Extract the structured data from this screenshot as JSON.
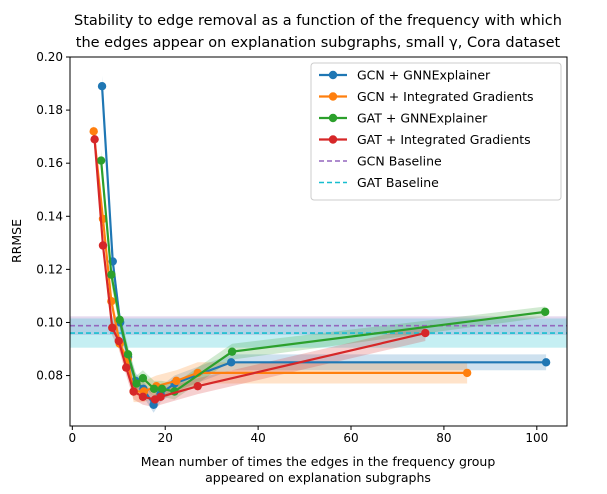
{
  "chart_data": {
    "type": "line",
    "title_lines": [
      "Stability to edge removal as a function of the frequency with which",
      "the edges appear on explanation subgraphs, small γ, Cora dataset"
    ],
    "xlabel_lines": [
      "Mean number of times the edges in the frequency group",
      "appeared on explanation subgraphs"
    ],
    "ylabel": "RRMSE",
    "xlim": [
      -0.5,
      106.5
    ],
    "ylim": [
      0.061,
      0.2
    ],
    "xticks": [
      0,
      20,
      40,
      60,
      80,
      100
    ],
    "yticks": [
      0.08,
      0.1,
      0.12,
      0.14,
      0.16,
      0.18,
      0.2
    ],
    "ytick_labels": [
      "0.08",
      "0.10",
      "0.12",
      "0.14",
      "0.16",
      "0.18",
      "0.20"
    ],
    "grid": false,
    "legend_position": "top-right",
    "series": [
      {
        "name": "GCN + GNNExplainer",
        "color": "#1f77b4",
        "x": [
          6.4,
          8.7,
          10.3,
          12.0,
          13.6,
          15.3,
          17.5,
          19.0,
          22.0,
          34.2,
          102.0
        ],
        "y": [
          0.189,
          0.123,
          0.1,
          0.087,
          0.078,
          0.075,
          0.069,
          0.073,
          0.077,
          0.085,
          0.085
        ],
        "band": [
          0.004,
          0.004,
          0.003,
          0.003,
          0.003,
          0.003,
          0.003,
          0.003,
          0.003,
          0.003,
          0.003
        ]
      },
      {
        "name": "GCN + Integrated Gradients",
        "color": "#ff7f0e",
        "x": [
          4.6,
          6.6,
          8.4,
          10.2,
          11.9,
          13.2,
          15.4,
          18.1,
          22.4,
          27.0,
          85.0
        ],
        "y": [
          0.172,
          0.139,
          0.108,
          0.092,
          0.086,
          0.074,
          0.074,
          0.076,
          0.078,
          0.081,
          0.081
        ],
        "band": [
          0.003,
          0.003,
          0.003,
          0.003,
          0.004,
          0.004,
          0.004,
          0.004,
          0.004,
          0.004,
          0.004
        ]
      },
      {
        "name": "GAT + GNNExplainer",
        "color": "#2ca02c",
        "x": [
          6.2,
          8.4,
          10.2,
          12.0,
          13.8,
          15.2,
          17.6,
          19.3,
          22.0,
          34.4,
          101.8
        ],
        "y": [
          0.161,
          0.118,
          0.101,
          0.088,
          0.077,
          0.079,
          0.075,
          0.075,
          0.074,
          0.089,
          0.104
        ],
        "band": [
          0.004,
          0.004,
          0.003,
          0.003,
          0.003,
          0.003,
          0.003,
          0.003,
          0.003,
          0.003,
          0.002
        ]
      },
      {
        "name": "GAT + Integrated Gradients",
        "color": "#d62728",
        "x": [
          4.8,
          6.6,
          8.6,
          10.0,
          11.6,
          13.2,
          15.2,
          17.8,
          19.0,
          27.0,
          76.0
        ],
        "y": [
          0.169,
          0.129,
          0.098,
          0.093,
          0.083,
          0.074,
          0.072,
          0.071,
          0.072,
          0.076,
          0.096
        ],
        "band": [
          0.003,
          0.003,
          0.003,
          0.003,
          0.003,
          0.003,
          0.003,
          0.003,
          0.003,
          0.003,
          0.003
        ]
      }
    ],
    "baselines": [
      {
        "name": "GCN Baseline",
        "color": "#9467bd",
        "y": 0.0988,
        "band": 0.0035
      },
      {
        "name": "GAT Baseline",
        "color": "#17becf",
        "y": 0.096,
        "band": 0.0055
      }
    ]
  }
}
